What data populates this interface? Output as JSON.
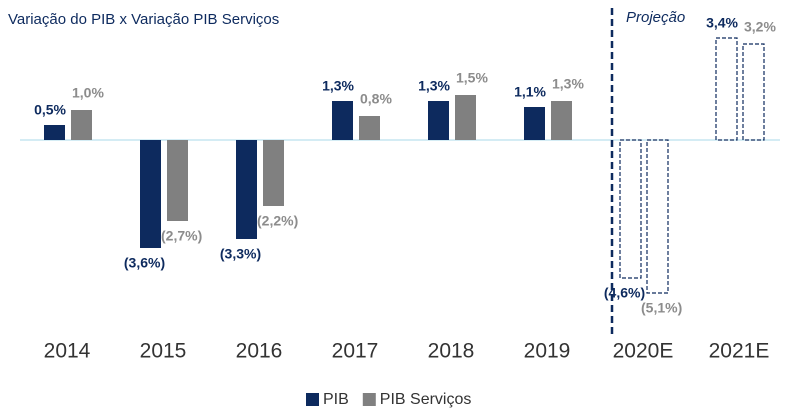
{
  "chart_data": {
    "type": "bar",
    "title": "Variação do PIB x Variação PIB Serviços",
    "annotation": "Projeção",
    "categories": [
      "2014",
      "2015",
      "2016",
      "2017",
      "2018",
      "2019",
      "2020E",
      "2021E"
    ],
    "series": [
      {
        "name": "PIB",
        "color": "#0d2a5e",
        "values": [
          0.5,
          -3.6,
          -3.3,
          1.3,
          1.3,
          1.1,
          -4.6,
          3.4
        ],
        "value_labels": [
          "0,5%",
          "(3,6%)",
          "(3,3%)",
          "1,3%",
          "1,3%",
          "1,1%",
          "(4,6%)",
          "3,4%"
        ]
      },
      {
        "name": "PIB Serviços",
        "color": "#808080",
        "values": [
          1.0,
          -2.7,
          -2.2,
          0.8,
          1.5,
          1.3,
          -5.1,
          3.2
        ],
        "value_labels": [
          "1,0%",
          "(2,7%)",
          "(2,2%)",
          "0,8%",
          "1,5%",
          "1,3%",
          "(5,1%)",
          "3,2%"
        ]
      }
    ],
    "dashed_from": 6,
    "ylim": [
      -5.5,
      4.0
    ]
  }
}
